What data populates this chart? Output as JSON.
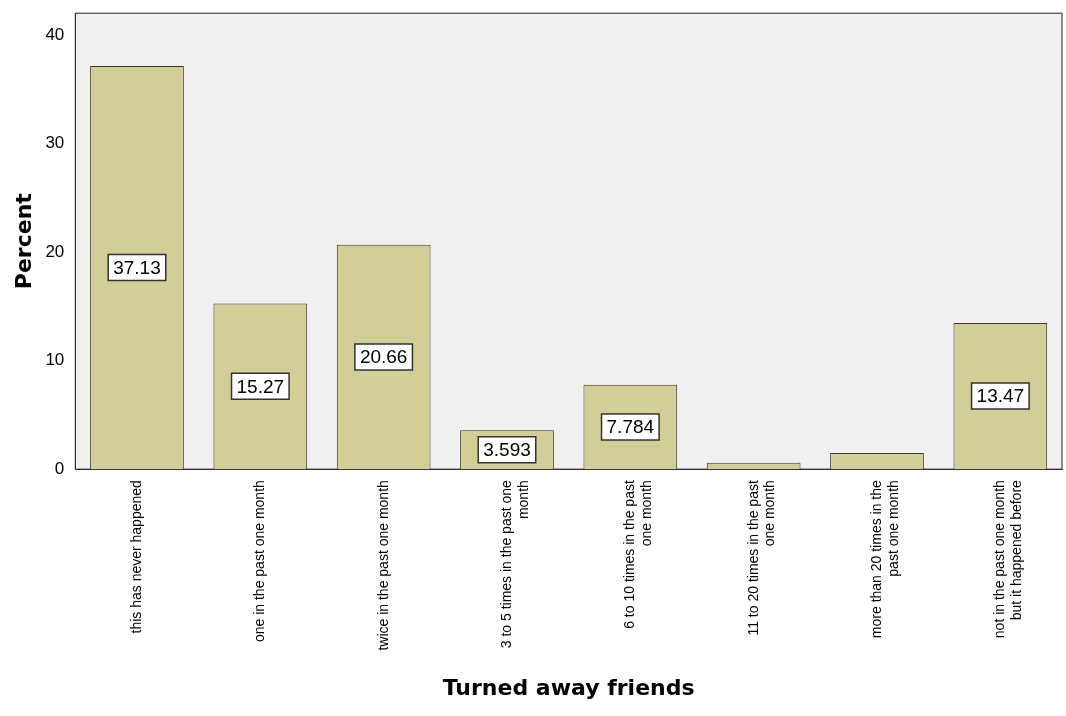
{
  "chart_data": {
    "type": "bar",
    "xlabel": "Turned away friends",
    "ylabel": "Percent",
    "categories": [
      "this has never happened",
      "one in the past one month",
      "twice in the past one month",
      "3 to 5 times in the past one month",
      "6 to 10 times in the past one month",
      "11 to 20 times in the past one month",
      "more than 20 times in the past one month",
      "not in the past one month but it happened before"
    ],
    "values": [
      37.13,
      15.27,
      20.66,
      3.593,
      7.784,
      0.6,
      1.5,
      13.47
    ],
    "value_labels": [
      "37.13",
      "15.27",
      "20.66",
      "3.593",
      "7.784",
      null,
      null,
      "13.47"
    ],
    "color": "#d3ce98",
    "ylim": [
      0,
      42
    ],
    "yticks": [
      0,
      10,
      20,
      30,
      40
    ],
    "grid": false,
    "legend": false
  }
}
